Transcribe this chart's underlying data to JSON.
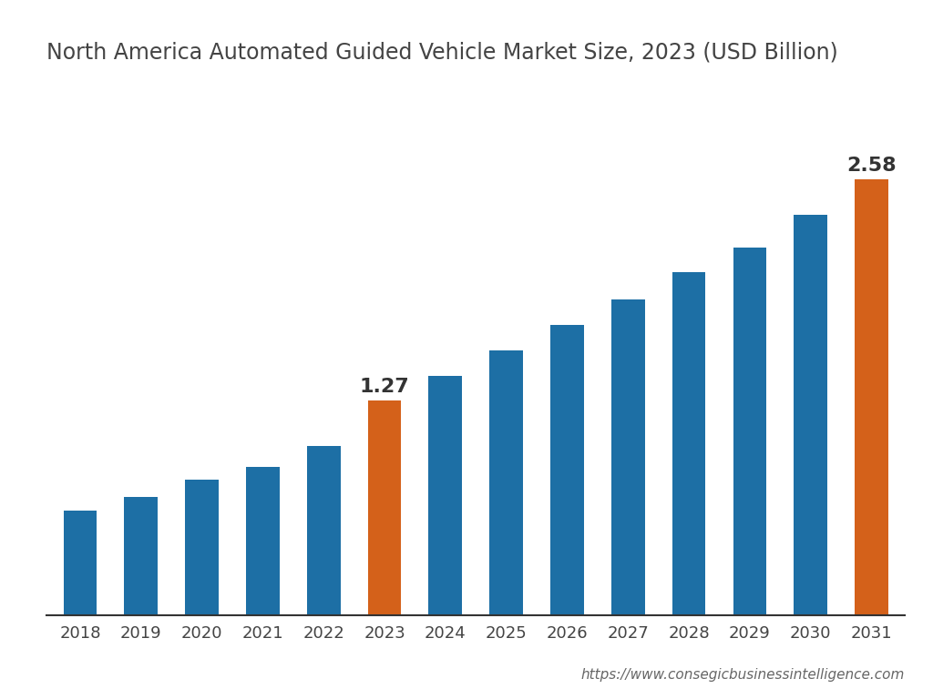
{
  "title": "North America Automated Guided Vehicle Market Size, 2023 (USD Billion)",
  "years": [
    2018,
    2019,
    2020,
    2021,
    2022,
    2023,
    2024,
    2025,
    2026,
    2027,
    2028,
    2029,
    2030,
    2031
  ],
  "values": [
    0.62,
    0.7,
    0.8,
    0.88,
    1.0,
    1.27,
    1.42,
    1.57,
    1.72,
    1.87,
    2.03,
    2.18,
    2.37,
    2.58
  ],
  "bar_colors": [
    "#1d6fa5",
    "#1d6fa5",
    "#1d6fa5",
    "#1d6fa5",
    "#1d6fa5",
    "#d4611a",
    "#1d6fa5",
    "#1d6fa5",
    "#1d6fa5",
    "#1d6fa5",
    "#1d6fa5",
    "#1d6fa5",
    "#1d6fa5",
    "#d4611a"
  ],
  "annotated_indices": [
    5,
    13
  ],
  "annotated_labels": [
    "1.27",
    "2.58"
  ],
  "background_color": "#ffffff",
  "title_fontsize": 17,
  "tick_fontsize": 13,
  "annotation_fontsize": 16,
  "annotation_color": "#333333",
  "watermark": "https://www.consegicbusinessintelligence.com",
  "watermark_fontsize": 11,
  "bar_width": 0.55,
  "ylim_factor": 1.22,
  "spine_color": "#333333"
}
